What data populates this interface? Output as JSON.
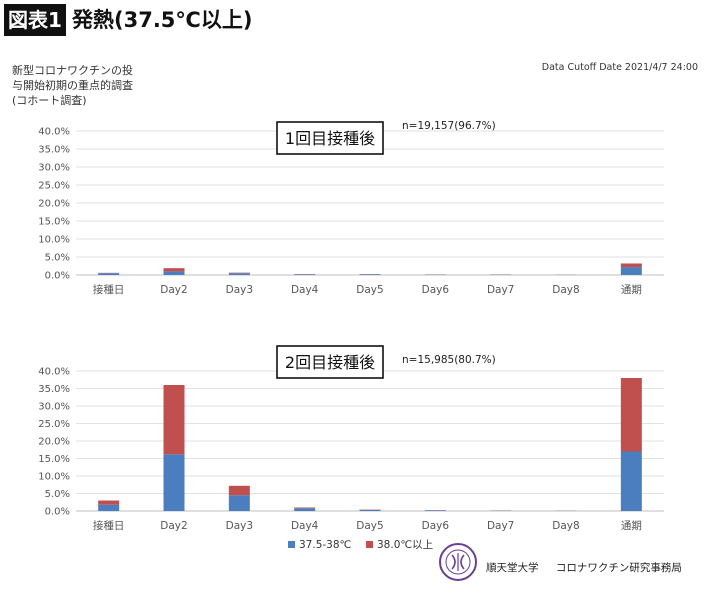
{
  "figure": {
    "badge": "図表1",
    "title": "発熱(37.5℃以上)",
    "cutoff": "Data Cutoff Date 2021/4/7 24:00",
    "study_lines": [
      "新型コロナワクチンの投",
      "与開始初期の重点的調査",
      "(コホート調査)"
    ]
  },
  "footer": {
    "org1": "順天堂大学",
    "org2": "コロナワクチン研究事務局"
  },
  "chart_data": [
    {
      "type": "bar",
      "stacked": true,
      "title": "1回目接種後",
      "annotation": "n=19,157(96.7%)",
      "categories": [
        "接種日",
        "Day2",
        "Day3",
        "Day4",
        "Day5",
        "Day6",
        "Day7",
        "Day8",
        "通期"
      ],
      "series": [
        {
          "name": "37.5-38℃",
          "color": "#4a7ebf",
          "values": [
            0.5,
            1.0,
            0.5,
            0.2,
            0.2,
            0.1,
            0.1,
            0.05,
            2.2
          ]
        },
        {
          "name": "38.0℃以上",
          "color": "#c0504d",
          "values": [
            0.1,
            0.9,
            0.15,
            0.05,
            0.05,
            0.05,
            0.05,
            0.02,
            1.0
          ]
        }
      ],
      "ylim": [
        0,
        40
      ],
      "yticks": [
        "0.0%",
        "5.0%",
        "10.0%",
        "15.0%",
        "20.0%",
        "25.0%",
        "30.0%",
        "35.0%",
        "40.0%"
      ],
      "grid": true
    },
    {
      "type": "bar",
      "stacked": true,
      "title": "2回目接種後",
      "annotation": "n=15,985(80.7%)",
      "categories": [
        "接種日",
        "Day2",
        "Day3",
        "Day4",
        "Day5",
        "Day6",
        "Day7",
        "Day8",
        "通期"
      ],
      "series": [
        {
          "name": "37.5-38℃",
          "color": "#4a7ebf",
          "values": [
            1.8,
            16.2,
            4.5,
            0.8,
            0.3,
            0.2,
            0.1,
            0.05,
            17.0
          ]
        },
        {
          "name": "38.0℃以上",
          "color": "#c0504d",
          "values": [
            1.2,
            19.8,
            2.7,
            0.2,
            0.1,
            0.05,
            0.05,
            0.05,
            21.0
          ]
        }
      ],
      "ylim": [
        0,
        40
      ],
      "yticks": [
        "0.0%",
        "5.0%",
        "10.0%",
        "15.0%",
        "20.0%",
        "25.0%",
        "30.0%",
        "35.0%",
        "40.0%"
      ],
      "grid": true,
      "legend": "bottom"
    }
  ]
}
